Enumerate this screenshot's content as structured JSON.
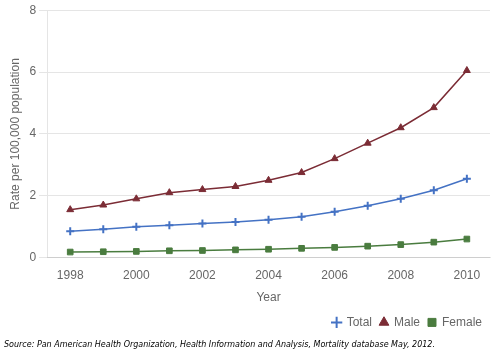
{
  "chart_data": {
    "type": "line",
    "x_label": "Year",
    "y_label": "Rate per 100,000 population",
    "annotations": [
      "Source: Pan American Health Organization, Health Information and Analysis, Mortality database May, 2012."
    ],
    "x": [
      1998,
      1999,
      2000,
      2001,
      2002,
      2003,
      2004,
      2005,
      2006,
      2007,
      2008,
      2009,
      2010
    ],
    "series": [
      {
        "name": "Total",
        "color": "#4472c4",
        "marker": "plus",
        "values": [
          0.85,
          0.92,
          1.0,
          1.05,
          1.1,
          1.15,
          1.22,
          1.32,
          1.48,
          1.68,
          1.9,
          2.18,
          2.55
        ]
      },
      {
        "name": "Male",
        "color": "#7b2c35",
        "marker": "triangle",
        "values": [
          1.55,
          1.7,
          1.9,
          2.1,
          2.2,
          2.3,
          2.5,
          2.75,
          3.2,
          3.7,
          4.2,
          4.85,
          6.05
        ]
      },
      {
        "name": "Female",
        "color": "#4a7c3f",
        "marker": "square",
        "values": [
          0.18,
          0.19,
          0.2,
          0.22,
          0.23,
          0.25,
          0.27,
          0.3,
          0.33,
          0.37,
          0.42,
          0.5,
          0.6
        ]
      }
    ],
    "xlim": [
      1997.3,
      2010.7
    ],
    "xticks": [
      1998,
      2000,
      2002,
      2004,
      2006,
      2008,
      2010
    ],
    "ylim": [
      0,
      8
    ],
    "yticks": [
      0,
      2,
      4,
      6,
      8
    ],
    "grid": "y",
    "legend": "lower right"
  }
}
